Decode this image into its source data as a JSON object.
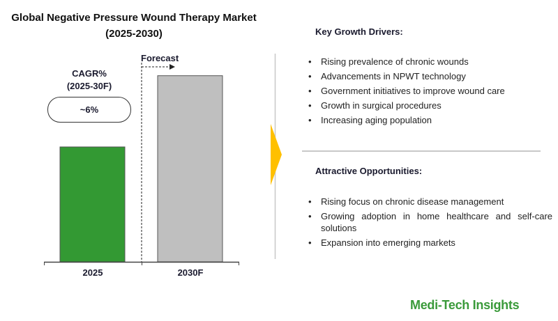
{
  "title_line1": "Global Negative Pressure Wound Therapy  Market",
  "title_line2": "(2025-2030)",
  "cagr": {
    "label_line1": "CAGR%",
    "label_line2": "(2025-30F)",
    "value": "~6%"
  },
  "forecast_label": "Forecast",
  "chart_data": {
    "type": "bar",
    "title": "Global Negative Pressure Wound Therapy  Market (2025-2030)",
    "categories": [
      "2025",
      "2030F"
    ],
    "relative_values": [
      1.0,
      1.62
    ],
    "colors": [
      "#339933",
      "#bfbfbf"
    ],
    "grid": false,
    "y_axis_shown": false
  },
  "drivers": {
    "heading": "Key Growth Drivers:",
    "items": [
      "Rising prevalence of chronic wounds",
      "Advancements in NPWT technology",
      "Government initiatives to improve wound care",
      "Growth in surgical procedures",
      "Increasing aging population"
    ]
  },
  "opportunities": {
    "heading": "Attractive Opportunities:",
    "items": [
      "Rising focus on chronic disease management",
      "Growing adoption in home healthcare and self-care solutions",
      "Expansion into emerging markets"
    ]
  },
  "logo": "Medi-Tech Insights",
  "accent_color": "#ffc000"
}
